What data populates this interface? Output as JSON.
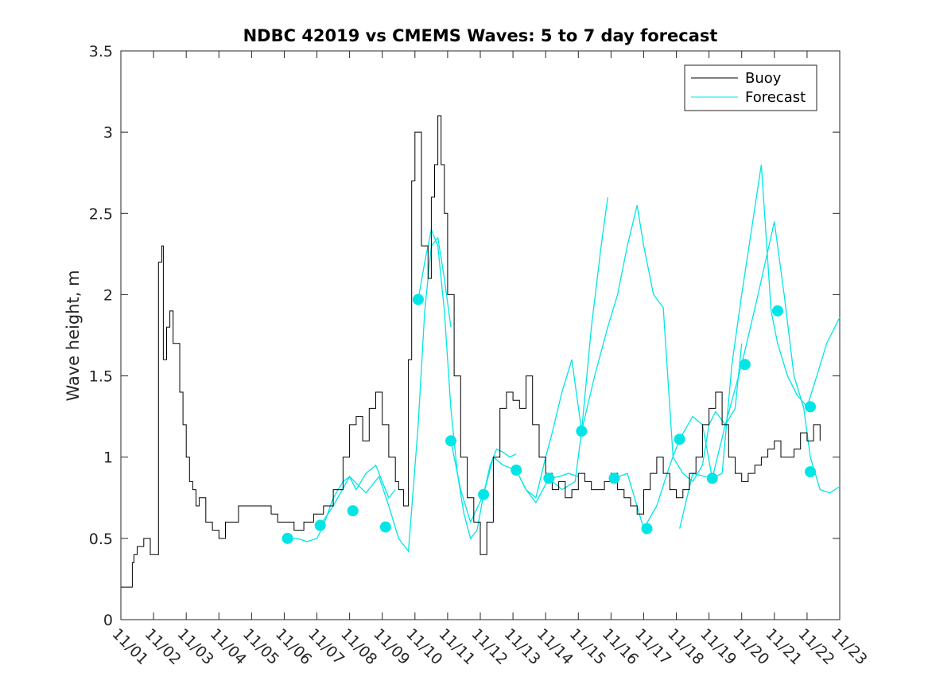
{
  "chart_data": {
    "type": "line",
    "title": "NDBC 42019 vs CMEMS Waves: 5 to 7 day forecast",
    "xlabel": "",
    "ylabel": "Wave height, m",
    "xlim": [
      0,
      22
    ],
    "ylim": [
      0,
      3.5
    ],
    "yticks": [
      0,
      0.5,
      1,
      1.5,
      2,
      2.5,
      3,
      3.5
    ],
    "ytick_labels": [
      "0",
      "0.5",
      "1",
      "1.5",
      "2",
      "2.5",
      "3",
      "3.5"
    ],
    "xticks": [
      0,
      1,
      2,
      3,
      4,
      5,
      6,
      7,
      8,
      9,
      10,
      11,
      12,
      13,
      14,
      15,
      16,
      17,
      18,
      19,
      20,
      21,
      22
    ],
    "xtick_labels": [
      "11/01",
      "11/02",
      "11/03",
      "11/04",
      "11/05",
      "11/06",
      "11/07",
      "11/08",
      "11/09",
      "11/10",
      "11/11",
      "11/12",
      "11/13",
      "11/14",
      "11/15",
      "11/16",
      "11/17",
      "11/18",
      "11/19",
      "11/20",
      "11/21",
      "11/22",
      "11/23"
    ],
    "legend": {
      "location": "top-right",
      "entries": [
        {
          "label": "Buoy",
          "color": "#000000"
        },
        {
          "label": "Forecast",
          "color": "#00e5e5"
        }
      ]
    },
    "series": [
      {
        "name": "Buoy",
        "color": "#000000",
        "x": [
          0,
          0.3,
          0.35,
          0.4,
          0.5,
          0.7,
          0.9,
          1.05,
          1.15,
          1.25,
          1.3,
          1.4,
          1.5,
          1.6,
          1.65,
          1.8,
          1.9,
          2.0,
          2.1,
          2.2,
          2.3,
          2.4,
          2.6,
          2.8,
          3.0,
          3.2,
          3.4,
          3.6,
          3.8,
          4.0,
          4.3,
          4.6,
          4.8,
          5.0,
          5.3,
          5.6,
          5.9,
          6.2,
          6.5,
          6.8,
          7.0,
          7.2,
          7.4,
          7.6,
          7.8,
          8.0,
          8.2,
          8.4,
          8.5,
          8.65,
          8.8,
          8.9,
          9.0,
          9.2,
          9.4,
          9.5,
          9.6,
          9.7,
          9.8,
          9.9,
          10.0,
          10.2,
          10.4,
          10.6,
          10.8,
          11.0,
          11.2,
          11.4,
          11.6,
          11.8,
          12.0,
          12.2,
          12.4,
          12.6,
          12.8,
          13.0,
          13.2,
          13.4,
          13.6,
          13.8,
          14.0,
          14.2,
          14.4,
          14.6,
          14.8,
          15.0,
          15.2,
          15.4,
          15.6,
          15.8,
          16.0,
          16.2,
          16.4,
          16.6,
          16.8,
          17.0,
          17.2,
          17.4,
          17.6,
          17.8,
          18.0,
          18.2,
          18.4,
          18.6,
          18.8,
          19.0,
          19.2,
          19.4,
          19.6,
          19.8,
          20.0,
          20.2,
          20.4,
          20.6,
          20.8,
          21.0,
          21.2,
          21.4
        ],
        "y": [
          0.2,
          0.2,
          0.35,
          0.4,
          0.45,
          0.5,
          0.4,
          0.4,
          2.2,
          2.3,
          1.6,
          1.8,
          1.9,
          1.7,
          1.7,
          1.4,
          1.2,
          1.0,
          0.85,
          0.8,
          0.7,
          0.75,
          0.6,
          0.55,
          0.5,
          0.6,
          0.6,
          0.7,
          0.7,
          0.7,
          0.7,
          0.65,
          0.6,
          0.6,
          0.55,
          0.6,
          0.65,
          0.7,
          0.8,
          1.0,
          1.2,
          1.25,
          1.1,
          1.3,
          1.4,
          1.2,
          1.0,
          0.85,
          0.8,
          0.7,
          1.6,
          2.7,
          3.0,
          2.3,
          2.1,
          2.6,
          2.8,
          3.1,
          2.8,
          2.5,
          2.0,
          1.5,
          1.0,
          0.75,
          0.6,
          0.4,
          0.6,
          1.0,
          1.3,
          1.4,
          1.35,
          1.3,
          1.5,
          1.2,
          1.0,
          0.9,
          0.8,
          0.85,
          0.75,
          0.8,
          0.9,
          0.85,
          0.8,
          0.8,
          0.85,
          0.9,
          0.8,
          0.75,
          0.7,
          0.65,
          0.8,
          0.9,
          1.0,
          0.9,
          0.8,
          0.75,
          0.8,
          0.9,
          1.0,
          1.2,
          1.3,
          1.4,
          1.2,
          1.0,
          0.9,
          0.85,
          0.9,
          0.95,
          1.0,
          1.05,
          1.1,
          1.0,
          1.0,
          1.05,
          1.15,
          1.1,
          1.2,
          1.1
        ]
      },
      {
        "name": "Forecast",
        "color": "#00e5e5",
        "segments": [
          {
            "x": [
              5.1,
              5.4,
              5.7,
              6.0,
              6.2,
              6.5,
              6.8,
              7.0,
              7.2,
              7.5,
              7.8,
              8.0,
              8.2,
              8.4
            ],
            "y": [
              0.5,
              0.5,
              0.48,
              0.5,
              0.58,
              0.75,
              0.85,
              0.88,
              0.8,
              0.9,
              0.95,
              0.85,
              0.75,
              0.8
            ]
          },
          {
            "x": [
              6.1,
              6.5,
              7.0,
              7.5,
              7.9,
              8.2,
              8.5,
              8.8,
              9.1,
              9.3,
              9.5,
              9.7,
              9.9,
              10.1
            ],
            "y": [
              0.58,
              0.7,
              0.88,
              0.78,
              0.88,
              0.7,
              0.5,
              0.42,
              1.2,
              1.9,
              2.3,
              2.35,
              2.1,
              1.8
            ]
          },
          {
            "x": [
              9.1,
              9.3,
              9.5,
              9.7,
              9.9,
              10.1,
              10.3,
              10.5,
              10.7,
              10.9,
              11.1,
              11.3,
              11.5,
              11.7,
              11.9,
              12.1
            ],
            "y": [
              1.97,
              2.2,
              2.4,
              2.3,
              1.9,
              1.3,
              0.9,
              0.65,
              0.5,
              0.55,
              0.77,
              0.95,
              1.05,
              1.03,
              1.0,
              1.02
            ]
          },
          {
            "x": [
              10.1,
              10.4,
              10.7,
              11.1,
              11.4,
              11.7,
              12.1,
              12.4,
              12.7,
              13.1,
              13.4,
              13.7,
              14.0
            ],
            "y": [
              1.1,
              0.8,
              0.6,
              0.77,
              1.0,
              0.95,
              0.92,
              0.8,
              0.72,
              0.87,
              0.88,
              0.9,
              0.88
            ]
          },
          {
            "x": [
              12.1,
              12.4,
              12.7,
              13.0,
              13.2,
              13.5,
              13.8,
              14.1,
              14.4,
              14.7,
              14.9
            ],
            "y": [
              0.92,
              0.8,
              0.75,
              1.0,
              1.15,
              1.4,
              1.6,
              1.16,
              1.8,
              2.3,
              2.6
            ]
          },
          {
            "x": [
              13.1,
              13.5,
              13.9,
              14.1,
              14.5,
              14.9,
              15.2,
              15.5,
              15.8,
              16.0,
              16.3,
              16.6,
              16.9,
              17.2,
              17.5,
              17.8,
              18.0,
              18.2,
              18.5,
              18.8,
              19.0
            ],
            "y": [
              0.87,
              0.8,
              0.85,
              1.16,
              1.5,
              1.8,
              2.0,
              2.3,
              2.55,
              2.3,
              2.0,
              1.92,
              1.0,
              0.9,
              0.85,
              0.95,
              1.2,
              1.28,
              1.2,
              1.3,
              1.7
            ]
          },
          {
            "x": [
              15.1,
              15.5,
              16.0,
              16.4,
              16.8,
              17.1,
              17.5,
              17.8,
              18.1,
              18.4,
              18.7,
              19.0,
              19.3,
              19.6,
              19.9,
              20.1,
              20.4,
              20.7,
              21.0,
              21.3,
              21.6,
              22.0
            ],
            "y": [
              0.87,
              0.9,
              0.56,
              0.7,
              0.95,
              1.11,
              1.25,
              1.2,
              0.87,
              0.9,
              1.57,
              2.0,
              2.4,
              2.8,
              1.9,
              1.7,
              1.5,
              1.38,
              1.31,
              1.5,
              1.7,
              1.86
            ]
          },
          {
            "x": [
              17.1,
              17.5,
              18.1,
              18.5,
              19.0,
              19.5,
              20.0,
              20.3,
              20.6,
              20.9,
              21.1,
              21.4,
              21.7,
              22.0
            ],
            "y": [
              0.56,
              0.9,
              0.87,
              1.2,
              1.57,
              2.0,
              2.45,
              2.0,
              1.5,
              1.3,
              1.0,
              0.8,
              0.78,
              0.82
            ]
          }
        ],
        "markers_x": [
          5.1,
          6.1,
          7.1,
          8.1,
          9.1,
          10.1,
          11.1,
          12.1,
          13.1,
          14.1,
          15.1,
          16.1,
          17.1,
          18.1,
          19.1,
          20.1,
          21.1,
          21.1
        ],
        "markers_y": [
          0.5,
          0.58,
          0.67,
          0.57,
          1.97,
          1.1,
          0.77,
          0.92,
          0.87,
          1.16,
          0.87,
          0.56,
          1.11,
          0.87,
          1.57,
          1.9,
          1.31,
          0.91
        ]
      }
    ]
  }
}
